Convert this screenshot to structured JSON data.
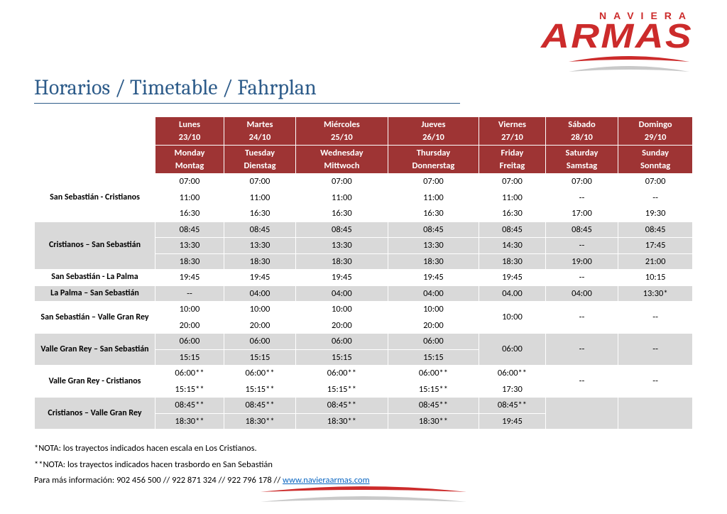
{
  "brand": {
    "top": "NAVIERA",
    "main": "ARMAS"
  },
  "title": "Horarios / Timetable / Fahrplan",
  "colors": {
    "header_bg": "#9e3434",
    "header_fg": "#ffffff",
    "row_grey": "#d9d9d9",
    "row_white": "#ffffff",
    "title_color": "#2e5c8a",
    "brand_red": "#cc2b2b",
    "link_color": "#0563c1",
    "swoosh_grey": "#c9c9c9"
  },
  "fonts": {
    "title_pt": 30,
    "header_pt": 13,
    "cell_pt": 12.5,
    "notes_pt": 12.5
  },
  "days": [
    {
      "es": "Lunes",
      "date": "23/10",
      "en": "Monday",
      "de": "Montag"
    },
    {
      "es": "Martes",
      "date": "24/10",
      "en": "Tuesday",
      "de": "Dienstag"
    },
    {
      "es": "Miércoles",
      "date": "25/10",
      "en": "Wednesday",
      "de": "Mittwoch"
    },
    {
      "es": "Jueves",
      "date": "26/10",
      "en": "Thursday",
      "de": "Donnerstag"
    },
    {
      "es": "Viernes",
      "date": "27/10",
      "en": "Friday",
      "de": "Freitag"
    },
    {
      "es": "Sábado",
      "date": "28/10",
      "en": "Saturday",
      "de": "Samstag"
    },
    {
      "es": "Domingo",
      "date": "29/10",
      "en": "Sunday",
      "de": "Sonntag"
    }
  ],
  "routes": [
    {
      "name": "San Sebastián - Cristianos",
      "shade": "white",
      "slots": [
        [
          "07:00",
          "07:00",
          "07:00",
          "07:00",
          "07:00",
          "07:00",
          "07:00"
        ],
        [
          "11:00",
          "11:00",
          "11:00",
          "11:00",
          "11:00",
          "--",
          "--"
        ],
        [
          "16:30",
          "16:30",
          "16:30",
          "16:30",
          "16:30",
          "17:00",
          "19:30"
        ]
      ]
    },
    {
      "name": "Cristianos – San Sebastián",
      "shade": "grey",
      "slots": [
        [
          "08:45",
          "08:45",
          "08:45",
          "08:45",
          "08:45",
          "08:45",
          "08:45"
        ],
        [
          "13:30",
          "13:30",
          "13:30",
          "13:30",
          "14:30",
          "--",
          "17:45"
        ],
        [
          "18:30",
          "18:30",
          "18:30",
          "18:30",
          "18:30",
          "19:00",
          "21:00"
        ]
      ]
    },
    {
      "name": "San Sebastián - La Palma",
      "shade": "white",
      "slots": [
        [
          "19:45",
          "19:45",
          "19:45",
          "19:45",
          "19:45",
          "--",
          "10:15"
        ]
      ]
    },
    {
      "name": "La Palma – San Sebastián",
      "shade": "grey",
      "slots": [
        [
          "--",
          "04:00",
          "04:00",
          "04:00",
          "04.00",
          "04:00",
          "13:30*"
        ]
      ]
    },
    {
      "name": "San Sebastián – Valle Gran Rey",
      "shade": "white",
      "merge56": true,
      "slots": [
        [
          "10:00",
          "10:00",
          "10:00",
          "10:00",
          "10:00",
          "--",
          "--"
        ],
        [
          "20:00",
          "20:00",
          "20:00",
          "20:00",
          "",
          "",
          ""
        ]
      ]
    },
    {
      "name": "Valle Gran Rey – San Sebastián",
      "shade": "grey",
      "merge56": true,
      "slots": [
        [
          "06:00",
          "06:00",
          "06:00",
          "06:00",
          "06:00",
          "--",
          "--"
        ],
        [
          "15:15",
          "15:15",
          "15:15",
          "15:15",
          "",
          "",
          ""
        ]
      ]
    },
    {
      "name": "Valle Gran Rey - Cristianos",
      "shade": "white",
      "merge67": true,
      "slots": [
        [
          "06:00**",
          "06:00**",
          "06:00**",
          "06:00**",
          "06:00**",
          "--",
          "--"
        ],
        [
          "15:15**",
          "15:15**",
          "15:15**",
          "15:15**",
          "17:30",
          "",
          ""
        ]
      ]
    },
    {
      "name": "Cristianos – Valle Gran Rey",
      "shade": "grey",
      "merge67": true,
      "slots": [
        [
          "08:45**",
          "08:45**",
          "08:45**",
          "08:45**",
          "08:45**",
          "",
          ""
        ],
        [
          "18:30**",
          "18:30**",
          "18:30**",
          "18:30**",
          "19:45",
          "",
          ""
        ]
      ]
    }
  ],
  "notes": {
    "n1": "*NOTA: los trayectos indicados hacen escala en Los Cristianos.",
    "n2": "**NOTA: los trayectos indicados hacen trasbordo en San Sebastián",
    "info_prefix": "Para más información: 902 456 500 // 922 871 324 // 922 796 178 // ",
    "link": "www.navieraarmas.com"
  }
}
